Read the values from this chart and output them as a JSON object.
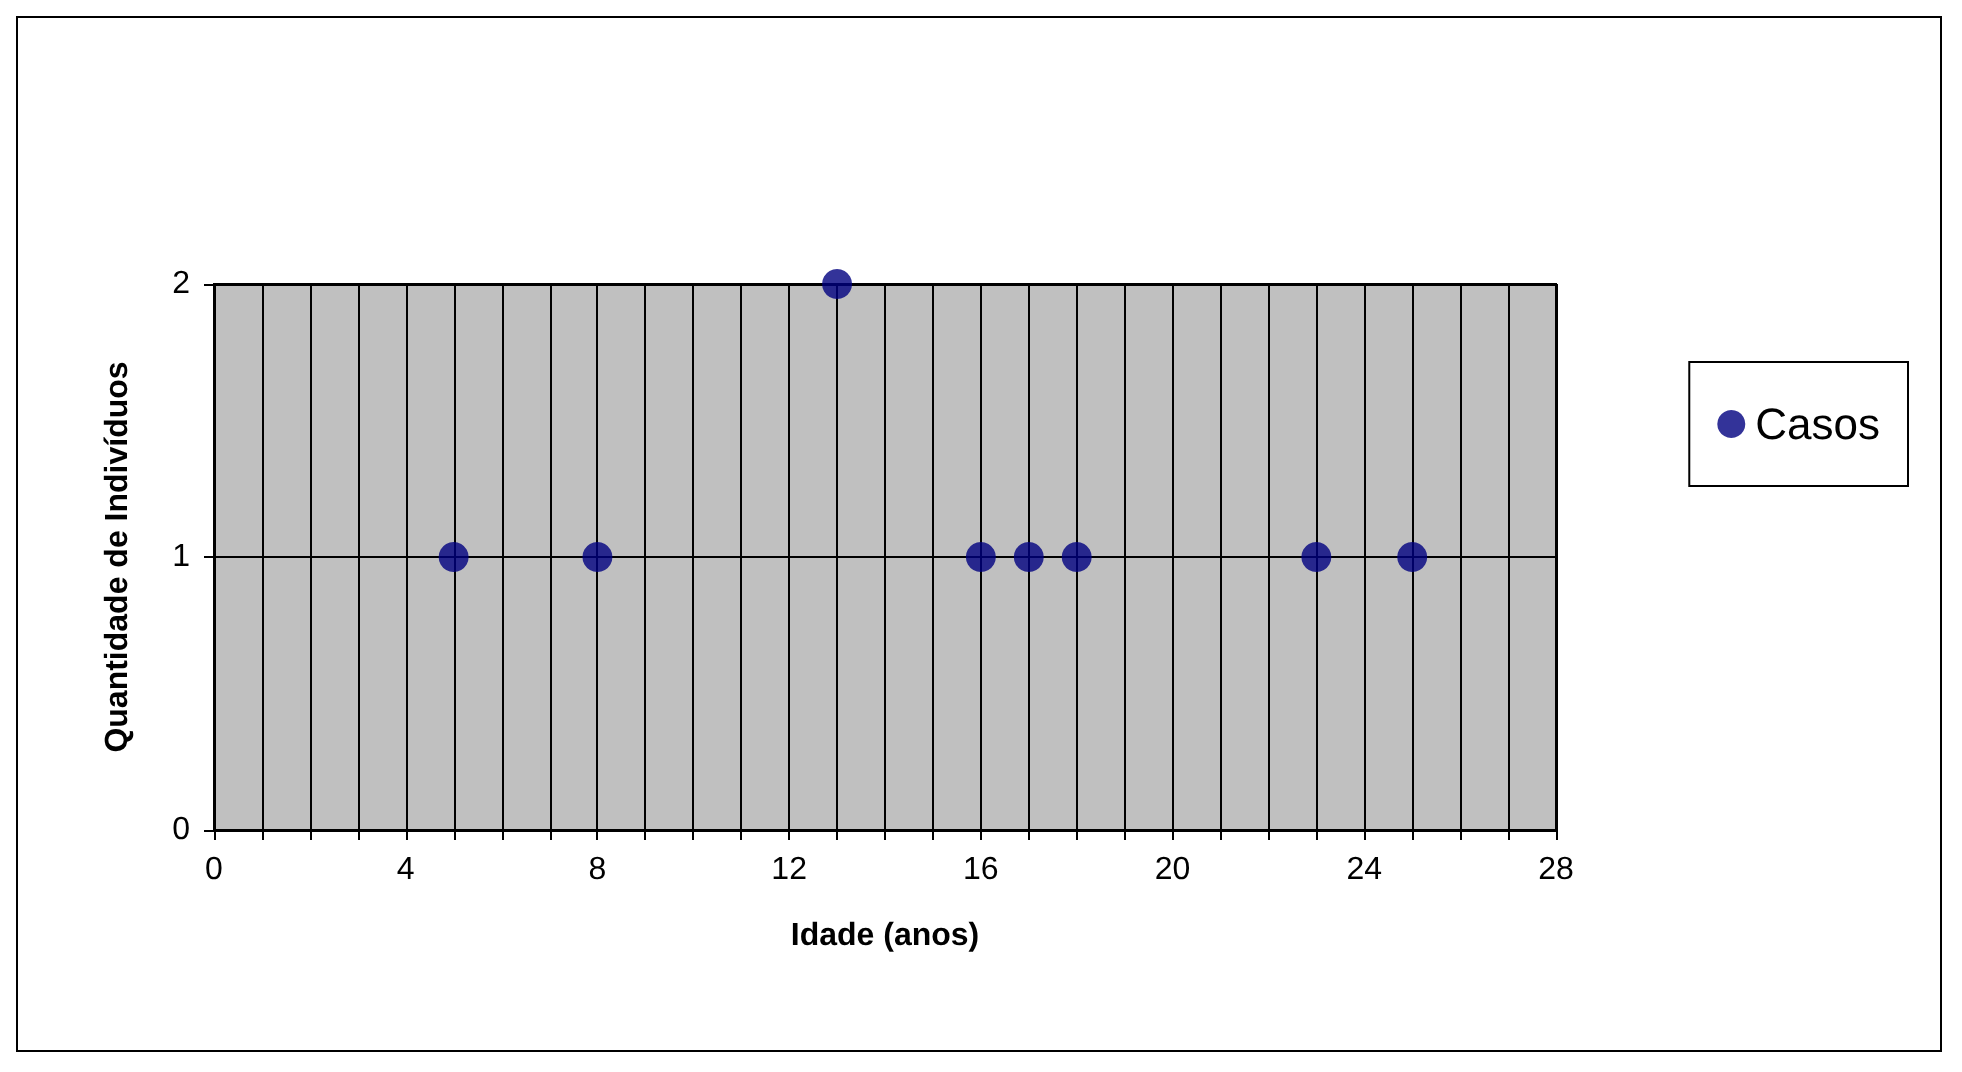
{
  "chart_data": {
    "type": "scatter",
    "xlabel": "Idade (anos)",
    "ylabel": "Quantidade de Indivíduos",
    "x": [
      5,
      8,
      13,
      16,
      17,
      18,
      23,
      25
    ],
    "series": [
      {
        "name": "Casos",
        "color": "#000080",
        "values": [
          1,
          1,
          2,
          1,
          1,
          1,
          1,
          1
        ]
      }
    ],
    "xlim": [
      0,
      28
    ],
    "xticks": [
      0,
      {
        "value": 1,
        "label": null
      },
      {
        "value": 2,
        "label": null
      },
      {
        "value": 3,
        "label": null
      },
      4,
      {
        "value": 5,
        "label": null
      },
      {
        "value": 6,
        "label": null
      },
      {
        "value": 7,
        "label": null
      },
      8,
      {
        "value": 9,
        "label": null
      },
      {
        "value": 10,
        "label": null
      },
      {
        "value": 11,
        "label": null
      },
      12,
      {
        "value": 13,
        "label": null
      },
      {
        "value": 14,
        "label": null
      },
      {
        "value": 15,
        "label": null
      },
      16,
      {
        "value": 17,
        "label": null
      },
      {
        "value": 18,
        "label": null
      },
      {
        "value": 19,
        "label": null
      },
      20,
      {
        "value": 21,
        "label": null
      },
      {
        "value": 22,
        "label": null
      },
      {
        "value": 23,
        "label": null
      },
      24,
      {
        "value": 25,
        "label": null
      },
      {
        "value": 26,
        "label": null
      },
      {
        "value": 27,
        "label": null
      },
      28
    ],
    "ylim": [
      0,
      2
    ],
    "yticks": [
      0,
      1,
      2
    ],
    "grid": true,
    "legend": "right",
    "marker": "circle"
  }
}
